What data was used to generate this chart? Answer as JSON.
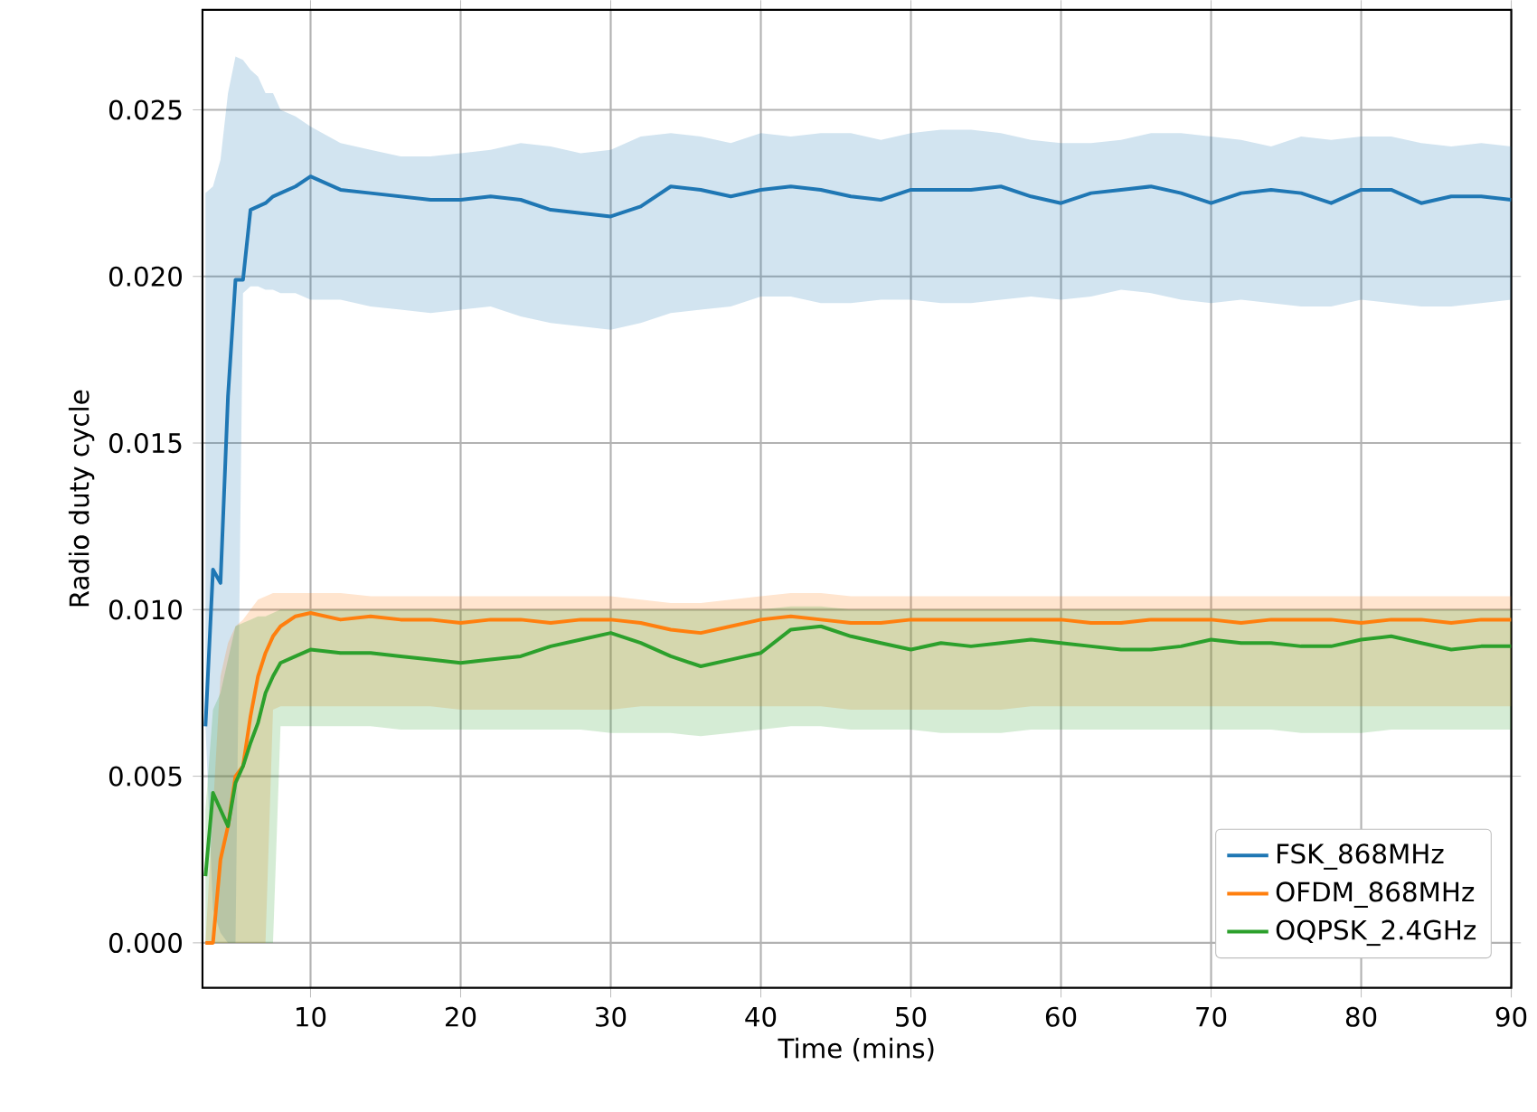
{
  "chart_data": {
    "type": "line",
    "xlabel": "Time (mins)",
    "ylabel": "Radio duty cycle",
    "x": [
      3,
      3.5,
      4,
      4.5,
      5,
      5.5,
      6,
      6.5,
      7,
      7.5,
      8,
      9,
      10,
      12,
      14,
      16,
      18,
      20,
      22,
      24,
      26,
      28,
      30,
      32,
      34,
      36,
      38,
      40,
      42,
      44,
      46,
      48,
      50,
      52,
      54,
      56,
      58,
      60,
      62,
      64,
      66,
      68,
      70,
      72,
      74,
      76,
      78,
      80,
      82,
      84,
      86,
      88,
      90
    ],
    "xlim": [
      2.8,
      90
    ],
    "ylim": [
      -0.00135,
      0.028
    ],
    "xticks": [
      10,
      20,
      30,
      40,
      50,
      60,
      70,
      80,
      90
    ],
    "yticks": [
      {
        "value": 0,
        "label": "0.000"
      },
      {
        "value": 0.005,
        "label": "0.005"
      },
      {
        "value": 0.01,
        "label": "0.010"
      },
      {
        "value": 0.015,
        "label": "0.015"
      },
      {
        "value": 0.02,
        "label": "0.020"
      },
      {
        "value": 0.025,
        "label": "0.025"
      }
    ],
    "grid": true,
    "legend": "bottom right",
    "line_style": "solid",
    "marker": "none",
    "series": [
      {
        "name": "FSK_868MHz",
        "color": "#1f77b4",
        "values": [
          0.0065,
          0.0112,
          0.0108,
          0.0164,
          0.0199,
          0.0199,
          0.022,
          0.0221,
          0.0222,
          0.0224,
          0.0225,
          0.0227,
          0.023,
          0.0226,
          0.0225,
          0.0224,
          0.0223,
          0.0223,
          0.0224,
          0.0223,
          0.022,
          0.0219,
          0.0218,
          0.0221,
          0.0227,
          0.0226,
          0.0224,
          0.0226,
          0.0227,
          0.0226,
          0.0224,
          0.0223,
          0.0226,
          0.0226,
          0.0226,
          0.0227,
          0.0224,
          0.0222,
          0.0225,
          0.0226,
          0.0227,
          0.0225,
          0.0222,
          0.0225,
          0.0226,
          0.0225,
          0.0222,
          0.0226,
          0.0226,
          0.0222,
          0.0224,
          0.0224,
          0.0223
        ],
        "upper": [
          0.0225,
          0.0227,
          0.0235,
          0.0255,
          0.0266,
          0.0265,
          0.0262,
          0.026,
          0.0255,
          0.0255,
          0.025,
          0.0248,
          0.0245,
          0.024,
          0.0238,
          0.0236,
          0.0236,
          0.0237,
          0.0238,
          0.024,
          0.0239,
          0.0237,
          0.0238,
          0.0242,
          0.0243,
          0.0242,
          0.024,
          0.0243,
          0.0242,
          0.0243,
          0.0243,
          0.0241,
          0.0243,
          0.0244,
          0.0244,
          0.0243,
          0.0241,
          0.024,
          0.024,
          0.0241,
          0.0243,
          0.0243,
          0.0242,
          0.0241,
          0.0239,
          0.0242,
          0.0241,
          0.0242,
          0.0242,
          0.024,
          0.0239,
          0.024,
          0.0239
        ],
        "lower": [
          0.0065,
          0.001,
          0.0003,
          0,
          0,
          0.0195,
          0.0197,
          0.0197,
          0.0196,
          0.0196,
          0.0195,
          0.0195,
          0.0193,
          0.0193,
          0.0191,
          0.019,
          0.0189,
          0.019,
          0.0191,
          0.0188,
          0.0186,
          0.0185,
          0.0184,
          0.0186,
          0.0189,
          0.019,
          0.0191,
          0.0194,
          0.0194,
          0.0192,
          0.0192,
          0.0193,
          0.0193,
          0.0192,
          0.0192,
          0.0193,
          0.0194,
          0.0193,
          0.0194,
          0.0196,
          0.0195,
          0.0193,
          0.0192,
          0.0193,
          0.0192,
          0.0191,
          0.0191,
          0.0193,
          0.0192,
          0.0191,
          0.0191,
          0.0192,
          0.0193
        ]
      },
      {
        "name": "OFDM_868MHz",
        "color": "#ff7f0e",
        "values": [
          0,
          0,
          0.0025,
          0.0035,
          0.005,
          0.0053,
          0.0068,
          0.008,
          0.0087,
          0.0092,
          0.0095,
          0.0098,
          0.0099,
          0.0097,
          0.0098,
          0.0097,
          0.0097,
          0.0096,
          0.0097,
          0.0097,
          0.0096,
          0.0097,
          0.0097,
          0.0096,
          0.0094,
          0.0093,
          0.0095,
          0.0097,
          0.0098,
          0.0097,
          0.0096,
          0.0096,
          0.0097,
          0.0097,
          0.0097,
          0.0097,
          0.0097,
          0.0097,
          0.0096,
          0.0096,
          0.0097,
          0.0097,
          0.0097,
          0.0096,
          0.0097,
          0.0097,
          0.0097,
          0.0096,
          0.0097,
          0.0097,
          0.0096,
          0.0097,
          0.0097
        ],
        "upper": [
          0,
          0.004,
          0.008,
          0.009,
          0.0095,
          0.0097,
          0.01,
          0.0103,
          0.0104,
          0.0105,
          0.0105,
          0.0105,
          0.0105,
          0.0105,
          0.0104,
          0.0104,
          0.0104,
          0.0104,
          0.0104,
          0.0104,
          0.0104,
          0.0104,
          0.0104,
          0.0103,
          0.0102,
          0.0102,
          0.0103,
          0.0104,
          0.0105,
          0.0105,
          0.0104,
          0.0104,
          0.0104,
          0.0104,
          0.0104,
          0.0104,
          0.0104,
          0.0104,
          0.0104,
          0.0104,
          0.0104,
          0.0104,
          0.0104,
          0.0104,
          0.0104,
          0.0104,
          0.0104,
          0.0104,
          0.0104,
          0.0104,
          0.0104,
          0.0104,
          0.0104
        ],
        "lower": [
          0,
          0,
          0,
          0,
          0,
          0,
          0,
          0,
          0,
          0.007,
          0.0071,
          0.0071,
          0.0071,
          0.0071,
          0.0071,
          0.0071,
          0.0071,
          0.007,
          0.007,
          0.007,
          0.007,
          0.007,
          0.007,
          0.0071,
          0.0071,
          0.0071,
          0.0071,
          0.0071,
          0.0071,
          0.0071,
          0.007,
          0.007,
          0.007,
          0.007,
          0.007,
          0.007,
          0.0071,
          0.0071,
          0.0071,
          0.0071,
          0.0071,
          0.0071,
          0.0071,
          0.0071,
          0.0071,
          0.0071,
          0.0071,
          0.0071,
          0.0071,
          0.0071,
          0.0071,
          0.0071,
          0.0071
        ]
      },
      {
        "name": "OQPSK_2.4GHz",
        "color": "#2ca02c",
        "values": [
          0.002,
          0.0045,
          0.004,
          0.0035,
          0.0048,
          0.0053,
          0.006,
          0.0066,
          0.0075,
          0.008,
          0.0084,
          0.0086,
          0.0088,
          0.0087,
          0.0087,
          0.0086,
          0.0085,
          0.0084,
          0.0085,
          0.0086,
          0.0089,
          0.0091,
          0.0093,
          0.009,
          0.0086,
          0.0083,
          0.0085,
          0.0087,
          0.0094,
          0.0095,
          0.0092,
          0.009,
          0.0088,
          0.009,
          0.0089,
          0.009,
          0.0091,
          0.009,
          0.0089,
          0.0088,
          0.0088,
          0.0089,
          0.0091,
          0.009,
          0.009,
          0.0089,
          0.0089,
          0.0091,
          0.0092,
          0.009,
          0.0088,
          0.0089,
          0.0089
        ],
        "upper": [
          0.004,
          0.007,
          0.0075,
          0.0085,
          0.0095,
          0.0096,
          0.0097,
          0.0098,
          0.0098,
          0.0099,
          0.01,
          0.01,
          0.01,
          0.01,
          0.01,
          0.01,
          0.01,
          0.01,
          0.01,
          0.01,
          0.01,
          0.01,
          0.01,
          0.01,
          0.01,
          0.01,
          0.01,
          0.01,
          0.0101,
          0.0101,
          0.01,
          0.01,
          0.01,
          0.01,
          0.01,
          0.01,
          0.01,
          0.01,
          0.01,
          0.01,
          0.01,
          0.01,
          0.01,
          0.01,
          0.01,
          0.01,
          0.01,
          0.01,
          0.01,
          0.01,
          0.01,
          0.01,
          0.01
        ],
        "lower": [
          0,
          0,
          0,
          0,
          0,
          0,
          0,
          0,
          0,
          0,
          0.0065,
          0.0065,
          0.0065,
          0.0065,
          0.0065,
          0.0064,
          0.0064,
          0.0064,
          0.0064,
          0.0064,
          0.0064,
          0.0064,
          0.0063,
          0.0063,
          0.0063,
          0.0062,
          0.0063,
          0.0064,
          0.0065,
          0.0065,
          0.0064,
          0.0064,
          0.0064,
          0.0063,
          0.0063,
          0.0063,
          0.0064,
          0.0064,
          0.0064,
          0.0064,
          0.0064,
          0.0064,
          0.0064,
          0.0064,
          0.0064,
          0.0063,
          0.0063,
          0.0063,
          0.0064,
          0.0064,
          0.0064,
          0.0064,
          0.0064
        ]
      }
    ]
  }
}
